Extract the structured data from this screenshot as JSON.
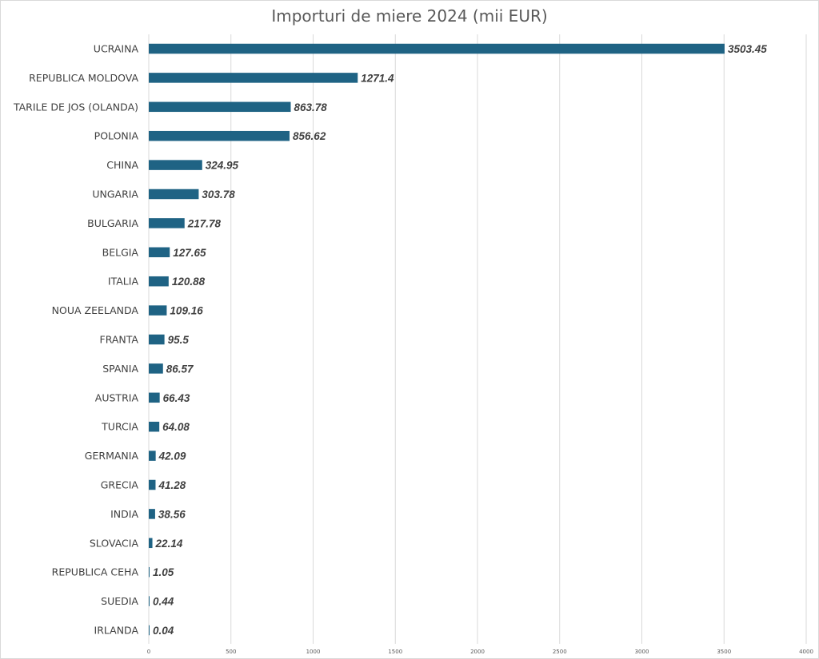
{
  "chart_data": {
    "type": "bar",
    "orientation": "horizontal",
    "title": "Importuri de miere  2024 (mii EUR)",
    "categories": [
      "UCRAINA",
      "REPUBLICA MOLDOVA",
      "TARILE DE JOS (OLANDA)",
      "POLONIA",
      "CHINA",
      "UNGARIA",
      "BULGARIA",
      "BELGIA",
      "ITALIA",
      "NOUA ZEELANDA",
      "FRANTA",
      "SPANIA",
      "AUSTRIA",
      "TURCIA",
      "GERMANIA",
      "GRECIA",
      "INDIA",
      "SLOVACIA",
      "REPUBLICA CEHA",
      "SUEDIA",
      "IRLANDA"
    ],
    "values": [
      3503.45,
      1271.4,
      863.78,
      856.62,
      324.95,
      303.78,
      217.78,
      127.65,
      120.88,
      109.16,
      95.5,
      86.57,
      66.43,
      64.08,
      42.09,
      41.28,
      38.56,
      22.14,
      1.05,
      0.44,
      0.04
    ],
    "value_labels": [
      "3503.45",
      "1271.4",
      "863.78",
      "856.62",
      "324.95",
      "303.78",
      "217.78",
      "127.65",
      "120.88",
      "109.16",
      "95.5",
      "86.57",
      "66.43",
      "64.08",
      "42.09",
      "41.28",
      "38.56",
      "22.14",
      "1.05",
      "0.44",
      "0.04"
    ],
    "x_ticks": [
      "0",
      "500",
      "1000",
      "1500",
      "2000",
      "2500",
      "3000",
      "3500",
      "4000"
    ],
    "xlim": [
      0,
      4000
    ],
    "xlabel": "",
    "ylabel": "",
    "grid": true,
    "legend": "none",
    "bar_color": "#1f6384",
    "gridline_color": "#d9d9d9"
  }
}
